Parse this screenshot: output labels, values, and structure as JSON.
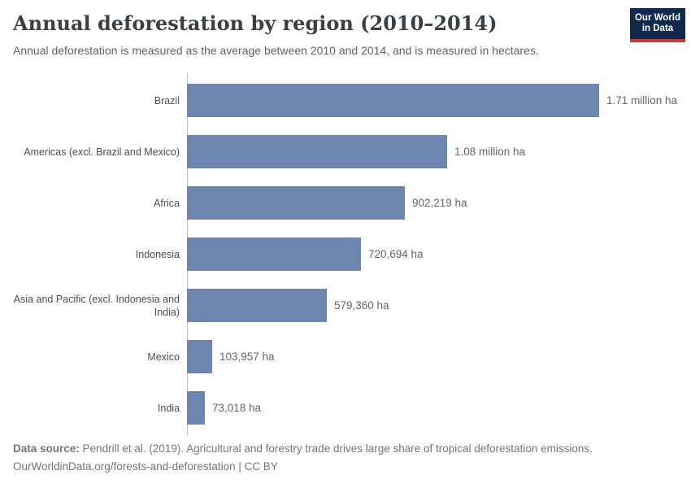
{
  "header": {
    "title": "Annual deforestation by region (2010–2014)",
    "subtitle": "Annual deforestation is measured as the average between 2010 and 2014, and is measured in hectares."
  },
  "logo": {
    "line1": "Our World",
    "line2": "in Data"
  },
  "chart_data": {
    "type": "bar",
    "orientation": "horizontal",
    "title": "Annual deforestation by region (2010–2014)",
    "subtitle": "Annual deforestation is measured as the average between 2010 and 2014, and is measured in hectares.",
    "unit": "hectares",
    "categories": [
      "Brazil",
      "Americas (excl. Brazil and Mexico)",
      "Africa",
      "Indonesia",
      "Asia and Pacific (excl. Indonesia and India)",
      "Mexico",
      "India"
    ],
    "values": [
      1710000,
      1080000,
      902219,
      720694,
      579360,
      103957,
      73018
    ],
    "value_labels": [
      "1.71 million ha",
      "1.08 million ha",
      "902,219 ha",
      "720,694 ha",
      "579,360 ha",
      "103,957 ha",
      "73,018 ha"
    ],
    "xlim": [
      0,
      1710000
    ],
    "grid": false,
    "legend": "none"
  },
  "footer": {
    "datasource_label": "Data source:",
    "datasource_text": "Pendrill et al. (2019). Agricultural and forestry trade drives large share of tropical deforestation emissions.",
    "attribution": "OurWorldinData.org/forests-and-deforestation | CC BY"
  },
  "colors": {
    "bar": "#6c86af",
    "logo_background": "#12294e",
    "logo_accent": "#d7342a"
  }
}
